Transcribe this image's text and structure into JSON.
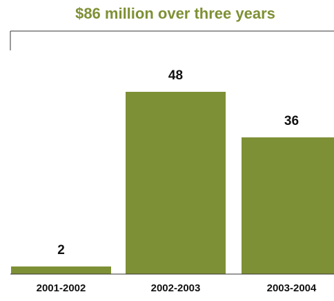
{
  "chart_data": {
    "type": "bar",
    "title": "$86 million over three years",
    "categories": [
      "2001-2002",
      "2002-2003",
      "2003-2004"
    ],
    "values": [
      2,
      48,
      36
    ],
    "value_labels": [
      "2",
      "48",
      "36"
    ],
    "xlabel": "",
    "ylabel": "",
    "ylim": [
      0,
      64
    ],
    "grid": false,
    "legend": "none"
  },
  "colors": {
    "bar": "#7e9035",
    "title": "#7e9035",
    "text": "#111111",
    "axis": "#333333"
  }
}
